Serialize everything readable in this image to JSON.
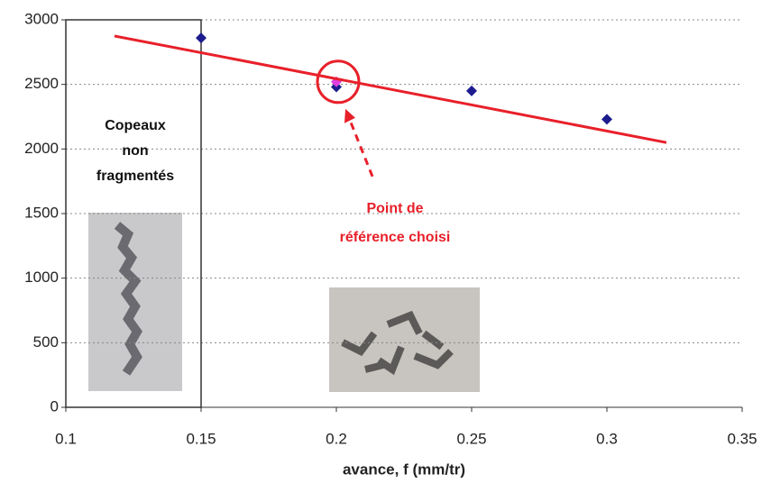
{
  "chart_data": {
    "type": "scatter",
    "xlabel": "avance, f (mm/tr)",
    "xlim": [
      0.1,
      0.35
    ],
    "xticks": [
      0.1,
      0.15,
      0.2,
      0.25,
      0.3,
      0.35
    ],
    "ylim": [
      0,
      3000
    ],
    "yticks": [
      0,
      500,
      1000,
      1500,
      2000,
      2500,
      3000
    ],
    "grid": true,
    "series": [
      {
        "color": "#1c1c8e",
        "marker": "diamond",
        "x": [
          0.15,
          0.2,
          0.25,
          0.3
        ],
        "values": [
          2860,
          2480,
          2450,
          2230
        ]
      },
      {
        "color": "#e040e0",
        "marker": "diamond",
        "x": [
          0.2
        ],
        "values": [
          2520
        ]
      },
      {
        "color": "#e8202a",
        "marker": "line",
        "x": [
          0.118,
          0.322
        ],
        "values": [
          2875,
          2050
        ]
      }
    ],
    "annotations": [
      {
        "lines": [
          "Copeaux",
          "non",
          "fragmentés"
        ],
        "color": "#111111"
      },
      {
        "lines": [
          "Point de",
          "référence choisi"
        ],
        "color": "#e8202a"
      }
    ]
  }
}
